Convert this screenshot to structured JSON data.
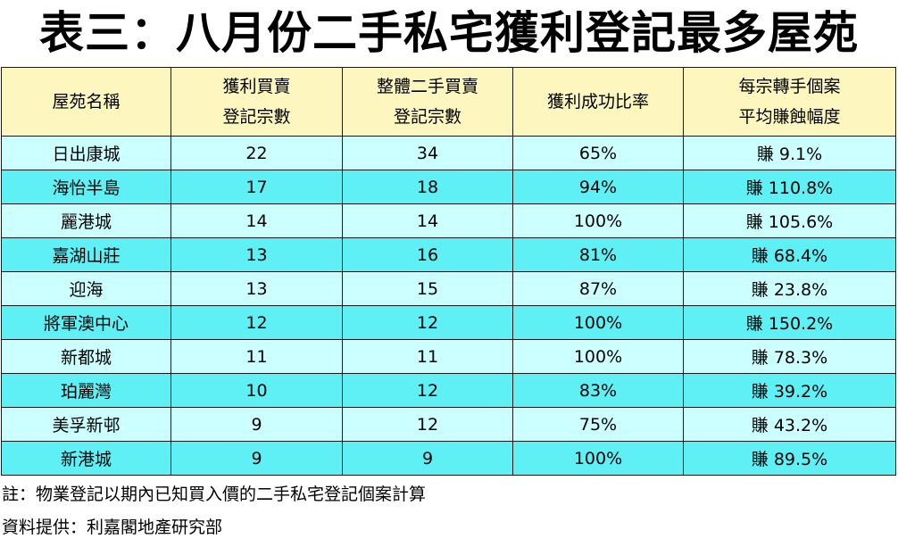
{
  "title": "表三：八月份二手私宅獲利登記最多屋苑",
  "table": {
    "headers": [
      {
        "line1": "屋苑名稱",
        "line2": ""
      },
      {
        "line1": "獲利買賣",
        "line2": "登記宗數"
      },
      {
        "line1": "整體二手買賣",
        "line2": "登記宗數"
      },
      {
        "line1": "獲利成功比率",
        "line2": ""
      },
      {
        "line1": "每宗轉手個案",
        "line2": "平均賺蝕幅度"
      }
    ],
    "rows": [
      [
        "日出康城",
        "22",
        "34",
        "65%",
        "賺 9.1%"
      ],
      [
        "海怡半島",
        "17",
        "18",
        "94%",
        "賺 110.8%"
      ],
      [
        "麗港城",
        "14",
        "14",
        "100%",
        "賺 105.6%"
      ],
      [
        "嘉湖山莊",
        "13",
        "16",
        "81%",
        "賺 68.4%"
      ],
      [
        "迎海",
        "13",
        "15",
        "87%",
        "賺 23.8%"
      ],
      [
        "將軍澳中心",
        "12",
        "12",
        "100%",
        "賺 150.2%"
      ],
      [
        "新都城",
        "11",
        "11",
        "100%",
        "賺 78.3%"
      ],
      [
        "珀麗灣",
        "10",
        "12",
        "83%",
        "賺 39.2%"
      ],
      [
        "美孚新邨",
        "9",
        "12",
        "75%",
        "賺 43.2%"
      ],
      [
        "新港城",
        "9",
        "9",
        "100%",
        "賺 89.5%"
      ]
    ]
  },
  "notes": {
    "note1": "註：物業登記以期內已知買入價的二手私宅登記個案計算",
    "source": "資料提供：利嘉閣地產研究部"
  },
  "colors": {
    "header_bg": "#fdf6bf",
    "row_light": "#ccffff",
    "row_dark": "#5ff0f5"
  }
}
